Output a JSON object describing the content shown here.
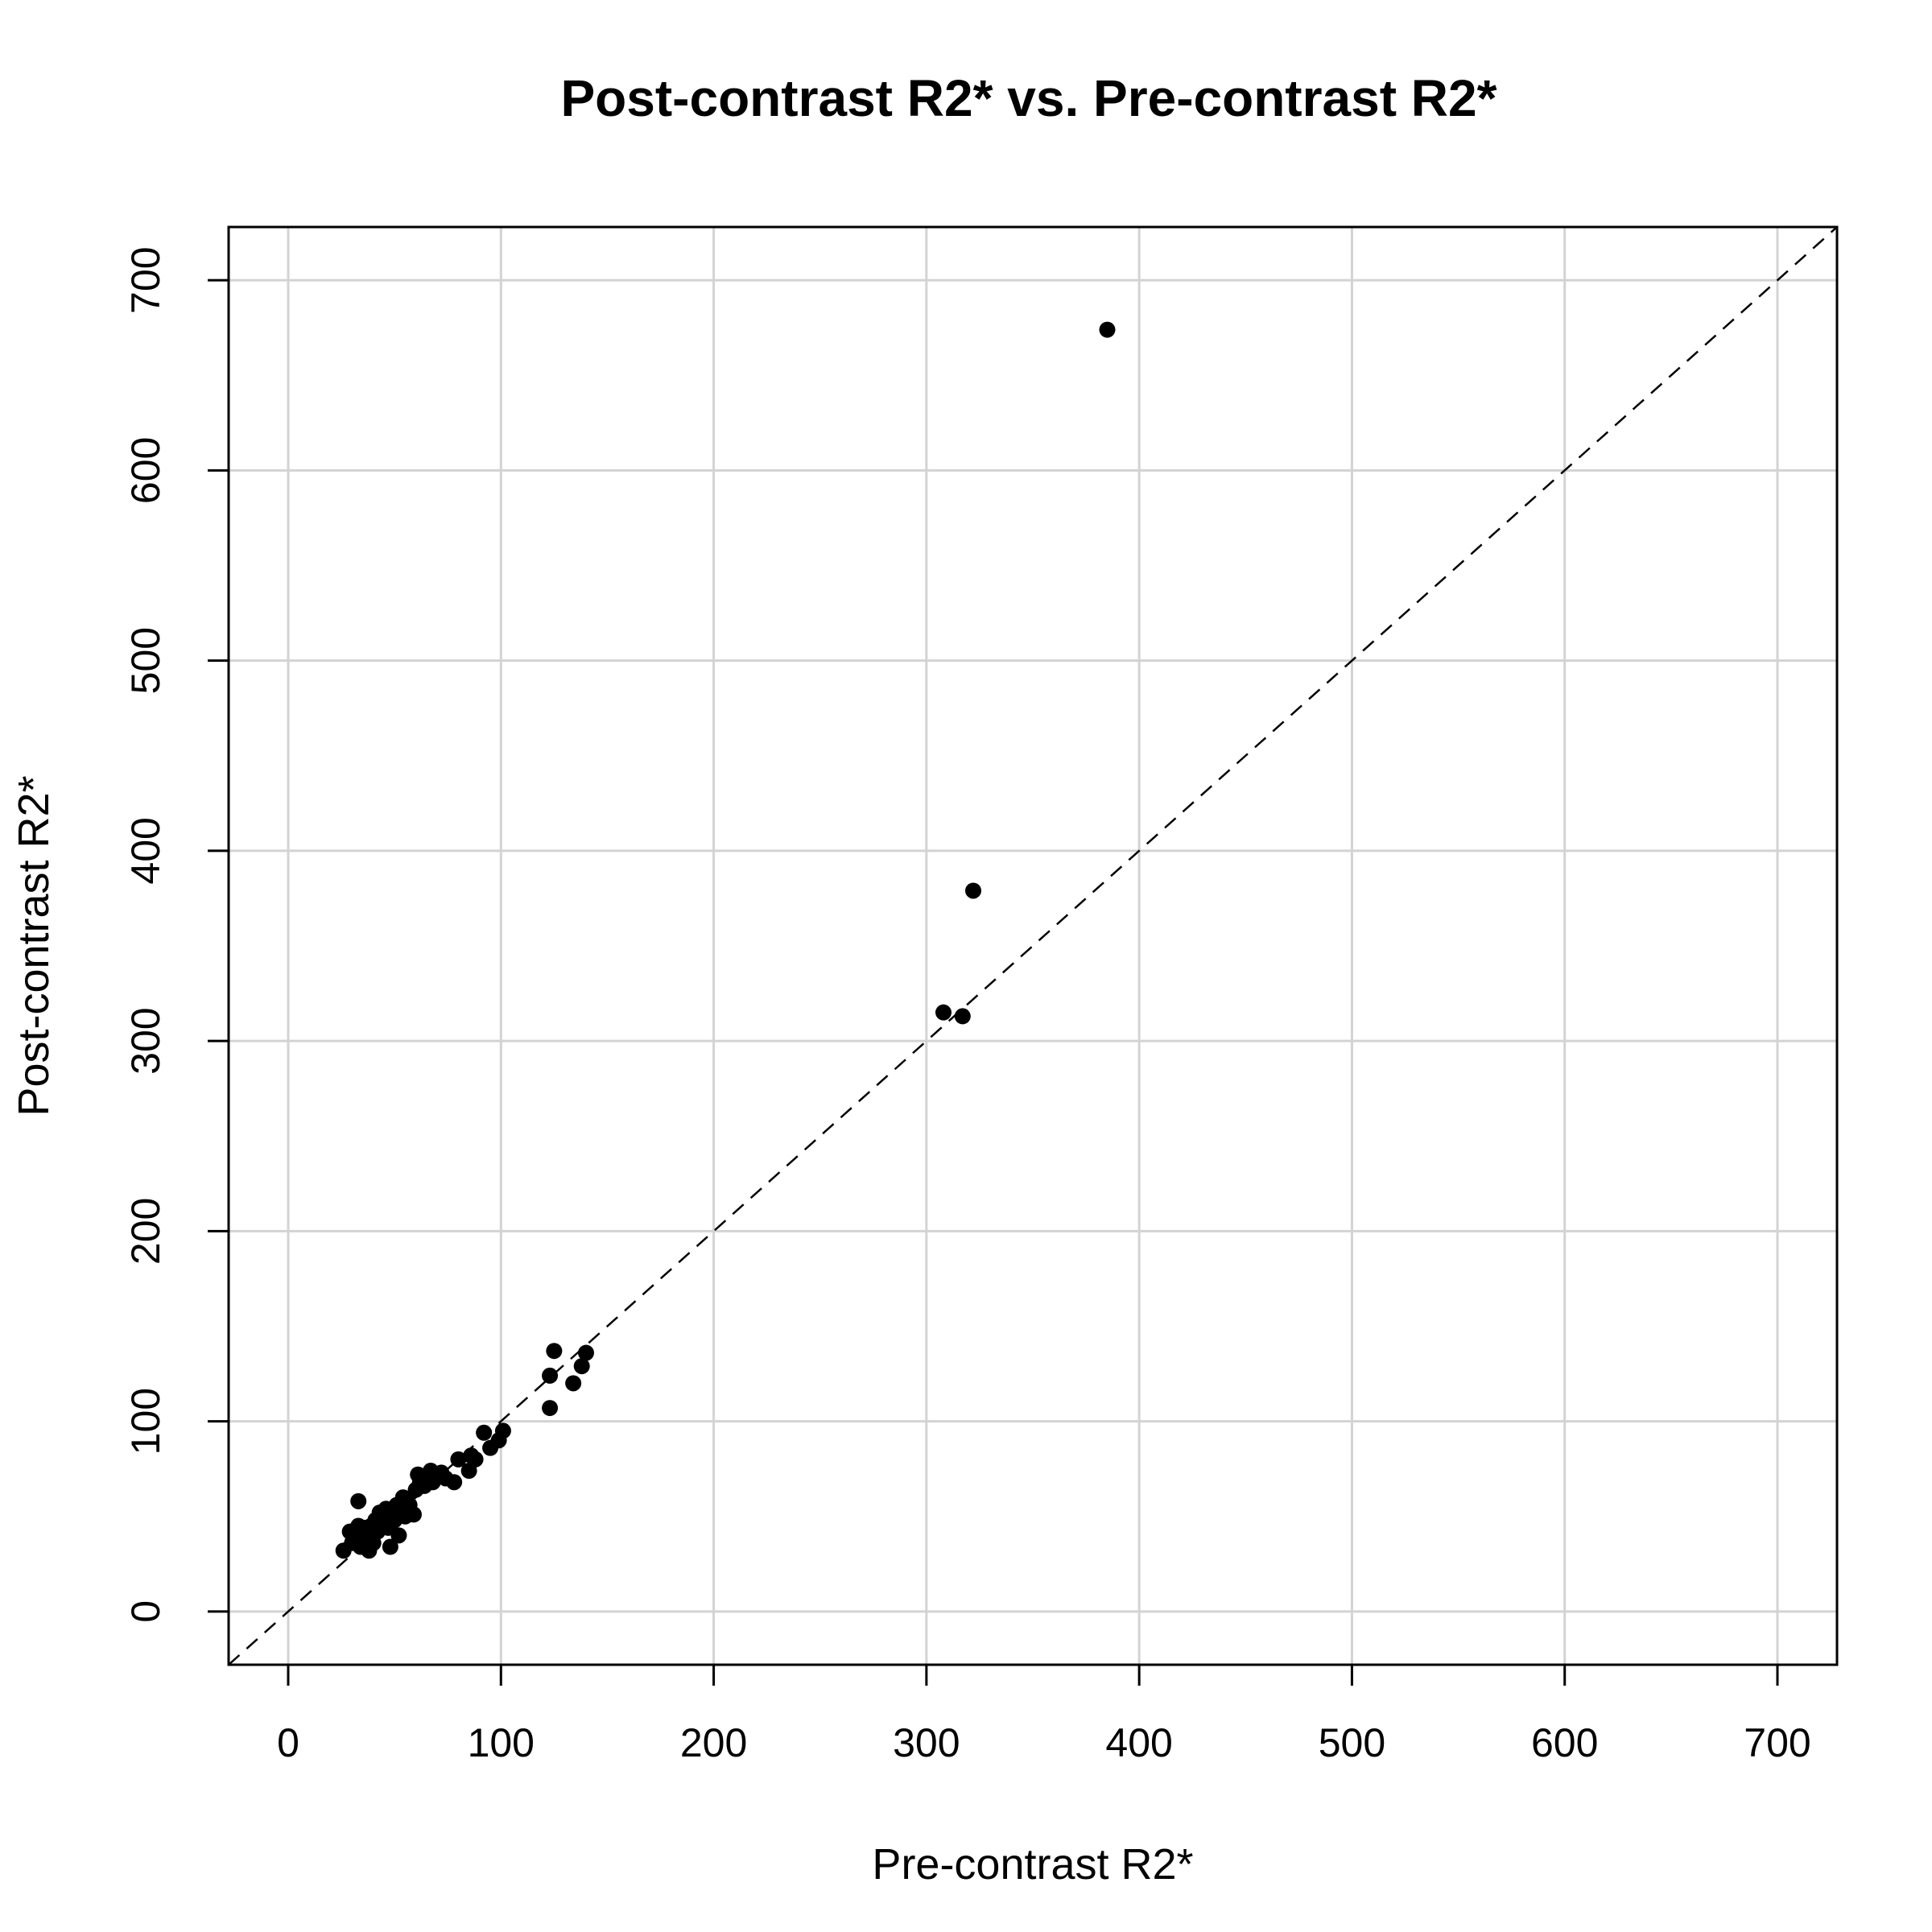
{
  "chart_data": {
    "type": "scatter",
    "title": "Post-contrast R2* vs. Pre-contrast R2*",
    "xlabel": "Pre-contrast R2*",
    "ylabel": "Post-contrast R2*",
    "xlim": [
      -28,
      728
    ],
    "ylim": [
      -28,
      728
    ],
    "xticks": [
      0,
      100,
      200,
      300,
      400,
      500,
      600,
      700
    ],
    "yticks": [
      0,
      100,
      200,
      300,
      400,
      500,
      600,
      700
    ],
    "xtick_labels": [
      "0",
      "100",
      "200",
      "300",
      "400",
      "500",
      "600",
      "700"
    ],
    "ytick_labels": [
      "0",
      "100",
      "200",
      "300",
      "400",
      "500",
      "600",
      "700"
    ],
    "grid": true,
    "grid_color": "#d3d3d3",
    "point_color": "#000000",
    "reference_line": {
      "slope": 1,
      "intercept": 0,
      "style": "dashed"
    },
    "series": [
      {
        "x": [
          26,
          29,
          30,
          32,
          33,
          33,
          34,
          35,
          36,
          37,
          38,
          39,
          40,
          41,
          42,
          43,
          44,
          45,
          46,
          47,
          48,
          49,
          50,
          51,
          52,
          53,
          54,
          55,
          56,
          57,
          59,
          60,
          61,
          62,
          64,
          65,
          67,
          68,
          70,
          72,
          74,
          78,
          80,
          85,
          86,
          88,
          92,
          95,
          99,
          101,
          123,
          123,
          125,
          134,
          138,
          140,
          308,
          317,
          322,
          385
        ],
        "y": [
          32,
          42,
          36,
          38,
          45,
          58,
          34,
          40,
          44,
          38,
          32,
          45,
          36,
          48,
          42,
          52,
          46,
          50,
          54,
          44,
          34,
          52,
          48,
          56,
          40,
          55,
          60,
          50,
          58,
          56,
          51,
          64,
          72,
          68,
          66,
          70,
          74,
          68,
          72,
          73,
          70,
          68,
          80,
          74,
          82,
          80,
          94,
          86,
          90,
          95,
          124,
          107,
          137,
          120,
          129,
          136,
          315,
          313,
          379,
          674
        ]
      }
    ]
  }
}
